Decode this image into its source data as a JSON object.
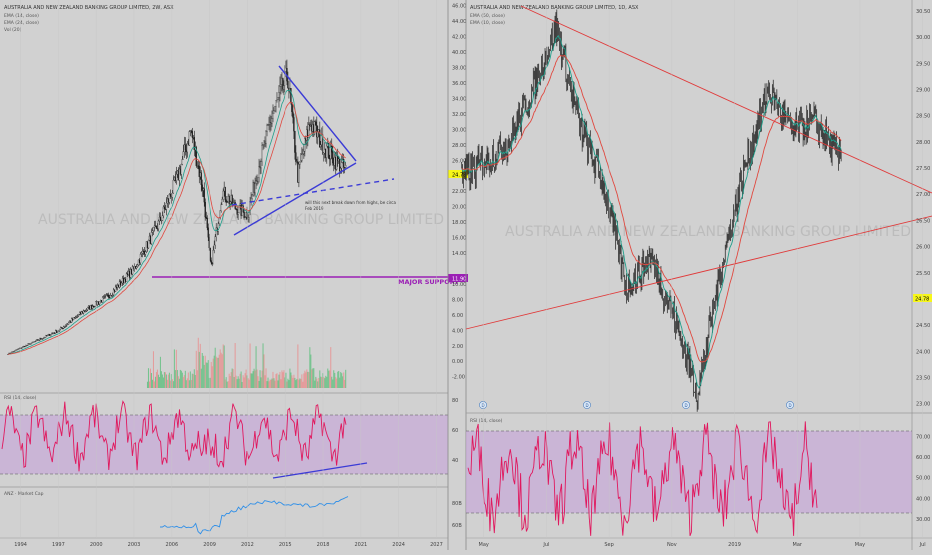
{
  "colors": {
    "bg": "#d1d1d1",
    "candle": "#1a1a1a",
    "ema_fast": "#1f9e8a",
    "ema_slow": "#e0483f",
    "vol_up": "#5fbf7f",
    "vol_down": "#e98f8f",
    "rsi_line": "#e0185e",
    "rsi_band": "#c8a9d8",
    "trend_blue": "#3b3bd6",
    "support": "#9b1fb5",
    "trend_red": "#e03a3a",
    "mcap": "#2f8fe8",
    "price_tag": "#f7f71a"
  },
  "left_panel": {
    "title": "AUSTRALIA AND NEW ZEALAND BANKING GROUP LIMITED, 2W, ASX",
    "legend": [
      "EMA (14, close)",
      "EMA (24, close)",
      "Vol (20)"
    ],
    "watermark": "AUSTRALIA AND NEW ZEALAND BANKING GROUP LIMITED",
    "annotation": [
      "will this next break down from highs, be circa",
      "Feb 2019"
    ],
    "support_label": "MAJOR SUPPORT",
    "support_price": "11.90",
    "last_price": "24.78",
    "rsi_title": "RSI (14, close)",
    "mcap_title": "ANZ · Market Cap",
    "x_labels": [
      "1994",
      "1997",
      "2000",
      "2003",
      "2006",
      "2009",
      "2012",
      "2015",
      "2018",
      "2021",
      "2024",
      "2027"
    ],
    "price_axis": [
      "46.00",
      "44.00",
      "42.00",
      "40.00",
      "38.00",
      "36.00",
      "34.00",
      "32.00",
      "30.00",
      "28.00",
      "26.00",
      "22.00",
      "20.00",
      "18.00",
      "16.00",
      "14.00",
      "10.00",
      "8.00",
      "6.00",
      "4.00",
      "2.00",
      "0.00",
      "-2.00"
    ],
    "rsi_axis": [
      "80",
      "60",
      "40"
    ],
    "mcap_axis": [
      "80B",
      "60B"
    ]
  },
  "right_panel": {
    "title": "AUSTRALIA AND NEW ZEALAND BANKING GROUP LIMITED, 1D, ASX",
    "legend": [
      "EMA (50, close)",
      "EMA (10, close)"
    ],
    "watermark": "AUSTRALIA AND NEW ZEALAND BANKING GROUP LIMITED",
    "last_price": "24.78",
    "rsi_title": "RSI (14, close)",
    "event_marker": "D",
    "x_labels": [
      "May",
      "Jul",
      "Sep",
      "Nov",
      "2019",
      "Mar",
      "May",
      "Jul",
      "Sep",
      "Nov",
      "2020",
      "Mar",
      "May"
    ],
    "price_axis": [
      "30.50",
      "30.00",
      "29.50",
      "29.00",
      "28.50",
      "28.00",
      "27.50",
      "27.00",
      "26.50",
      "26.00",
      "25.50",
      "25.00",
      "24.50",
      "24.00",
      "23.50",
      "23.00"
    ],
    "rsi_axis": [
      "70.00",
      "60.00",
      "50.00",
      "40.00",
      "30.00"
    ]
  },
  "chart_data": [
    {
      "type": "line",
      "title": "AUSTRALIA AND NEW ZEALAND BANKING GROUP LIMITED, 2W, ASX",
      "xlabel": "",
      "ylabel": "",
      "ylim": [
        -2,
        46
      ],
      "x": [
        1993,
        1995,
        1997,
        1999,
        2001,
        2003,
        2005,
        2006.5,
        2007.5,
        2008.5,
        2009.1,
        2010,
        2011,
        2012,
        2013,
        2014,
        2015.2,
        2016,
        2017,
        2018,
        2019,
        2019.8
      ],
      "series": [
        {
          "name": "",
          "values": [
            1,
            2.5,
            4,
            6.5,
            8.5,
            12,
            18,
            24,
            30,
            22,
            12,
            22,
            20,
            19,
            26,
            32,
            37,
            24,
            31,
            28,
            26,
            24.78
          ]
        }
      ]
    },
    {
      "type": "line",
      "title": "AUSTRALIA AND NEW ZEALAND BANKING GROUP LIMITED, 1D, ASX",
      "xlabel": "",
      "ylabel": "",
      "ylim": [
        23,
        30.6
      ],
      "x": [
        "2018-04",
        "2018-06",
        "2018-07",
        "2018-08",
        "2018-09",
        "2018-10",
        "2018-11",
        "2018-12",
        "2019-01",
        "2019-02",
        "2019-03",
        "2019-04",
        "2019-05",
        "2019-06",
        "2019-07",
        "2019-08",
        "2019-09",
        "2019-10",
        "2019-11",
        "2019-12"
      ],
      "series": [
        {
          "name": "",
          "values": [
            27.3,
            28,
            29,
            30.2,
            28.3,
            27.2,
            25.2,
            25.8,
            24.7,
            23.2,
            25.6,
            27.5,
            29,
            28.2,
            28.4,
            27.7,
            28.8,
            28.1,
            24.6,
            24.78
          ]
        }
      ]
    }
  ]
}
